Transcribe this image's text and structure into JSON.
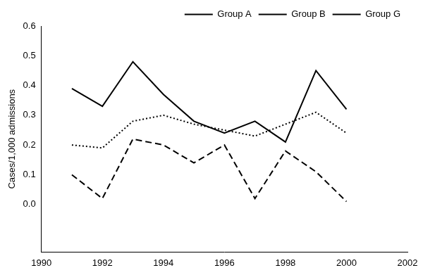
{
  "chart_data": {
    "type": "line",
    "y_label": "Cases/1,000 admissions",
    "x": [
      1991,
      1992,
      1993,
      1994,
      1995,
      1996,
      1997,
      1998,
      1999,
      2000
    ],
    "series": [
      {
        "name": "Group A",
        "color": "#000000",
        "line_style": "solid",
        "values": [
          0.39,
          0.33,
          0.48,
          0.37,
          0.28,
          0.24,
          0.28,
          0.21,
          0.45,
          0.32
        ]
      },
      {
        "name": "Group B",
        "color": "#000000",
        "line_style": "dotted",
        "values": [
          0.2,
          0.19,
          0.28,
          0.3,
          0.27,
          0.25,
          0.23,
          0.27,
          0.31,
          0.24
        ]
      },
      {
        "name": "Group G",
        "color": "#000000",
        "line_style": "dashed",
        "values": [
          0.1,
          0.02,
          0.22,
          0.2,
          0.14,
          0.2,
          0.02,
          0.18,
          0.11,
          0.01
        ]
      }
    ],
    "xlim": [
      1990,
      2002
    ],
    "xticks": [
      1990,
      1992,
      1994,
      1996,
      1998,
      2000,
      2002
    ],
    "ylim": [
      -0.16,
      0.6
    ],
    "yticks": [
      {
        "value": 0,
        "label": "0.0"
      },
      0.1,
      0.2,
      0.3,
      0.4,
      0.5,
      0.6
    ],
    "grid": false,
    "legend": "upper right"
  }
}
